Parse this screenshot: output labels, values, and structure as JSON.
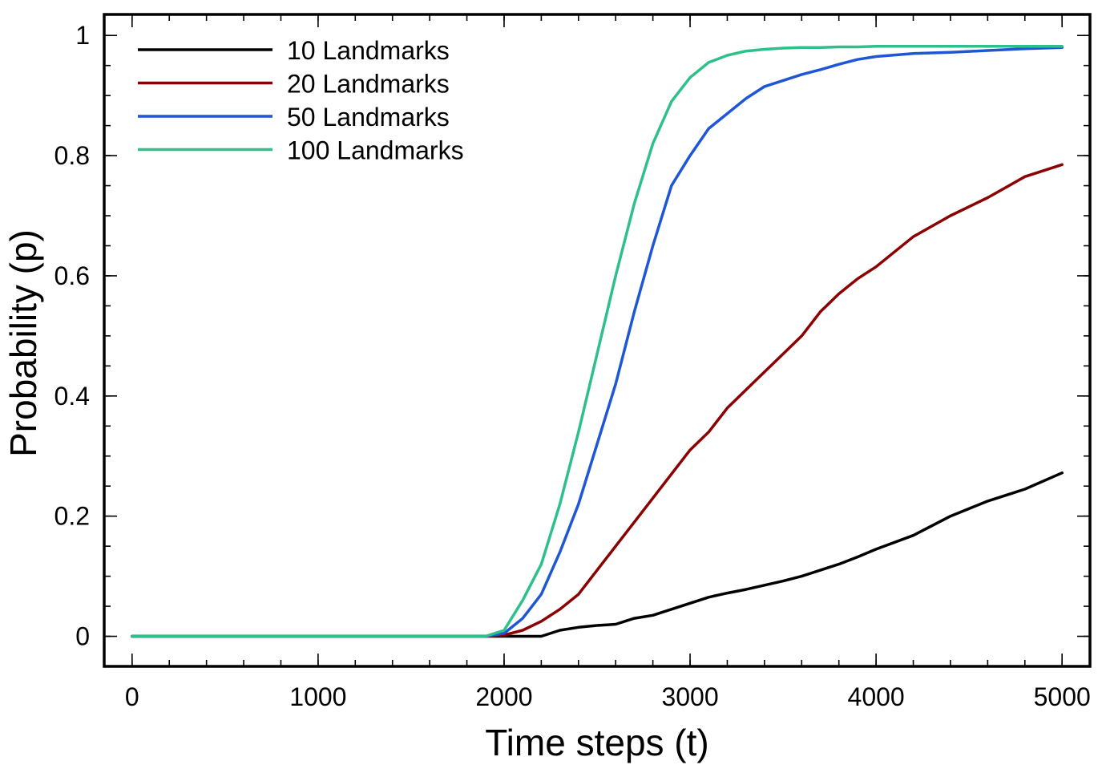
{
  "chart_data": {
    "type": "line",
    "xlabel": "Time steps (t)",
    "ylabel": "Probability (p)",
    "xlim": [
      -150,
      5150
    ],
    "ylim": [
      -0.05,
      1.035
    ],
    "xticks": [
      0,
      1000,
      2000,
      3000,
      4000,
      5000
    ],
    "xtick_labels": [
      "0",
      "1000",
      "2000",
      "3000",
      "4000",
      "5000"
    ],
    "xminor_step": 200,
    "yticks": [
      0,
      0.2,
      0.4,
      0.6,
      0.8,
      1
    ],
    "ytick_labels": [
      "0",
      "0.2",
      "0.4",
      "0.6",
      "0.8",
      "1"
    ],
    "yminor_step": 0.05,
    "grid": false,
    "legend_position": "top-left",
    "x": [
      0,
      1900,
      2000,
      2100,
      2200,
      2300,
      2400,
      2500,
      2600,
      2700,
      2800,
      2900,
      3000,
      3100,
      3200,
      3300,
      3400,
      3500,
      3600,
      3700,
      3800,
      3900,
      4000,
      4200,
      4400,
      4600,
      4800,
      5000
    ],
    "series": [
      {
        "name": "10 Landmarks",
        "color": "#000000",
        "values": [
          0,
          0,
          0,
          0,
          0,
          0.01,
          0.015,
          0.018,
          0.02,
          0.03,
          0.035,
          0.045,
          0.055,
          0.065,
          0.072,
          0.078,
          0.085,
          0.092,
          0.1,
          0.11,
          0.12,
          0.132,
          0.145,
          0.168,
          0.2,
          0.225,
          0.245,
          0.272
        ]
      },
      {
        "name": "20 Landmarks",
        "color": "#8b0000",
        "values": [
          0,
          0,
          0.002,
          0.01,
          0.025,
          0.045,
          0.07,
          0.11,
          0.15,
          0.19,
          0.23,
          0.27,
          0.31,
          0.34,
          0.38,
          0.41,
          0.44,
          0.47,
          0.5,
          0.54,
          0.57,
          0.595,
          0.615,
          0.665,
          0.7,
          0.73,
          0.765,
          0.785
        ]
      },
      {
        "name": "50 Landmarks",
        "color": "#1f56d6",
        "values": [
          0,
          0,
          0.005,
          0.03,
          0.07,
          0.14,
          0.22,
          0.32,
          0.42,
          0.54,
          0.65,
          0.75,
          0.8,
          0.845,
          0.87,
          0.895,
          0.915,
          0.925,
          0.935,
          0.943,
          0.952,
          0.96,
          0.965,
          0.97,
          0.972,
          0.975,
          0.978,
          0.98
        ]
      },
      {
        "name": "100 Landmarks",
        "color": "#2ec08a",
        "values": [
          0,
          0,
          0.01,
          0.06,
          0.12,
          0.22,
          0.34,
          0.47,
          0.6,
          0.72,
          0.82,
          0.89,
          0.93,
          0.955,
          0.967,
          0.974,
          0.977,
          0.979,
          0.98,
          0.98,
          0.981,
          0.981,
          0.982,
          0.982,
          0.982,
          0.982,
          0.982,
          0.982
        ]
      }
    ]
  }
}
